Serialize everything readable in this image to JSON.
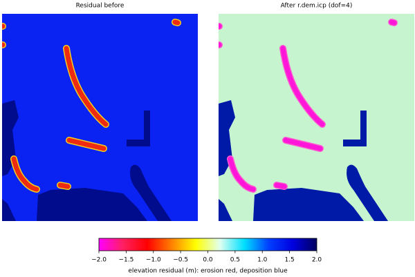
{
  "chart_data": {
    "type": "heatmap",
    "panels": [
      {
        "title": "Residual before",
        "background": "#0a22f2",
        "region_color": "#000c8c",
        "streak_color": "#ee2a10",
        "streak_edge": "#f5d020"
      },
      {
        "title": "After r.dem.icp (dof=4)",
        "background": "#c6f4cf",
        "region_color": "#001aa8",
        "streak_color": "#ff16d8",
        "streak_edge": "#ff5ad0"
      }
    ],
    "colorbar": {
      "label": "elevation residual (m): erosion red, deposition blue",
      "colormap": [
        "#ff00ff",
        "#ff2060",
        "#ff0000",
        "#ff8000",
        "#ffff00",
        "#e0fff0",
        "#00e0ff",
        "#0040ff",
        "#0000e0",
        "#000060"
      ],
      "xlim": [
        -2,
        2
      ],
      "xticks": [
        {
          "value": -2,
          "label": "−2.0"
        },
        {
          "value": -1.5,
          "label": "−1.5"
        },
        {
          "value": -1,
          "label": "−1.0"
        },
        {
          "value": -0.5,
          "label": "−0.5"
        },
        {
          "value": 0,
          "label": "0.0"
        },
        {
          "value": 0.5,
          "label": "0.5"
        },
        {
          "value": 1,
          "label": "1.0"
        },
        {
          "value": 1.5,
          "label": "1.5"
        },
        {
          "value": 2,
          "label": "2.0"
        }
      ]
    }
  }
}
